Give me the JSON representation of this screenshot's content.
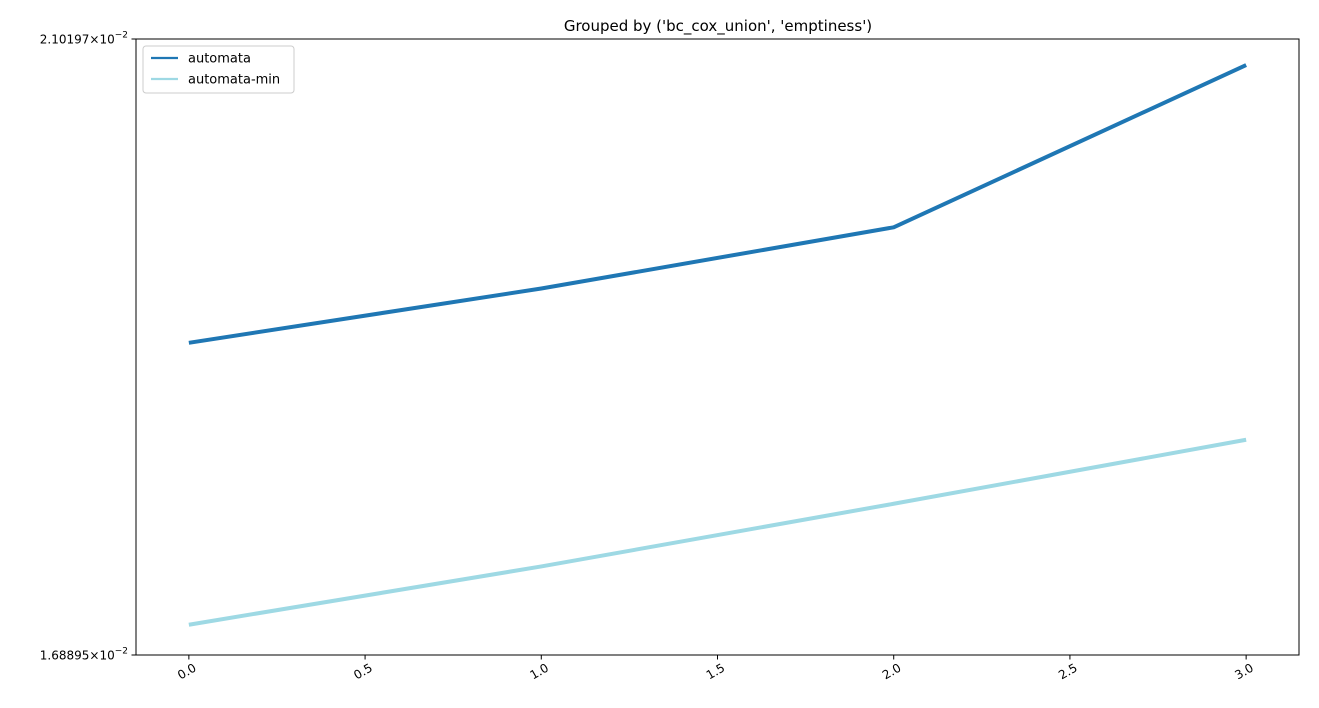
{
  "chart_data": {
    "type": "line",
    "title": "Grouped by ('bc_cox_union', 'emptiness')",
    "xlabel": "",
    "ylabel": "",
    "x": [
      0,
      1,
      2,
      3
    ],
    "series": [
      {
        "name": "automata",
        "values": [
          0.0188698,
          0.0192373,
          0.01966,
          0.0208261
        ],
        "color": "#1f77b4"
      },
      {
        "name": "automata-min",
        "values": [
          0.0170721,
          0.0174291,
          0.0178215,
          0.0182312
        ],
        "color": "#9ed9e4"
      }
    ],
    "xlim": [
      -0.15,
      3.15
    ],
    "ylim": [
      0.0168895,
      0.0210197
    ],
    "y_scale": "log",
    "x_ticks": [
      {
        "value": 0.0,
        "label": "0.0"
      },
      {
        "value": 0.5,
        "label": "0.5"
      },
      {
        "value": 1.0,
        "label": "1.0"
      },
      {
        "value": 1.5,
        "label": "1.5"
      },
      {
        "value": 2.0,
        "label": "2.0"
      },
      {
        "value": 2.5,
        "label": "2.5"
      },
      {
        "value": 3.0,
        "label": "3.0"
      }
    ],
    "y_ticks": [
      {
        "value": 0.0210197,
        "mantissa": "2.10197",
        "base": "10",
        "exponent": "−2"
      },
      {
        "value": 0.0168895,
        "mantissa": "1.68895",
        "base": "10",
        "exponent": "−2"
      }
    ],
    "legend_position": "top-left",
    "grid": false
  }
}
